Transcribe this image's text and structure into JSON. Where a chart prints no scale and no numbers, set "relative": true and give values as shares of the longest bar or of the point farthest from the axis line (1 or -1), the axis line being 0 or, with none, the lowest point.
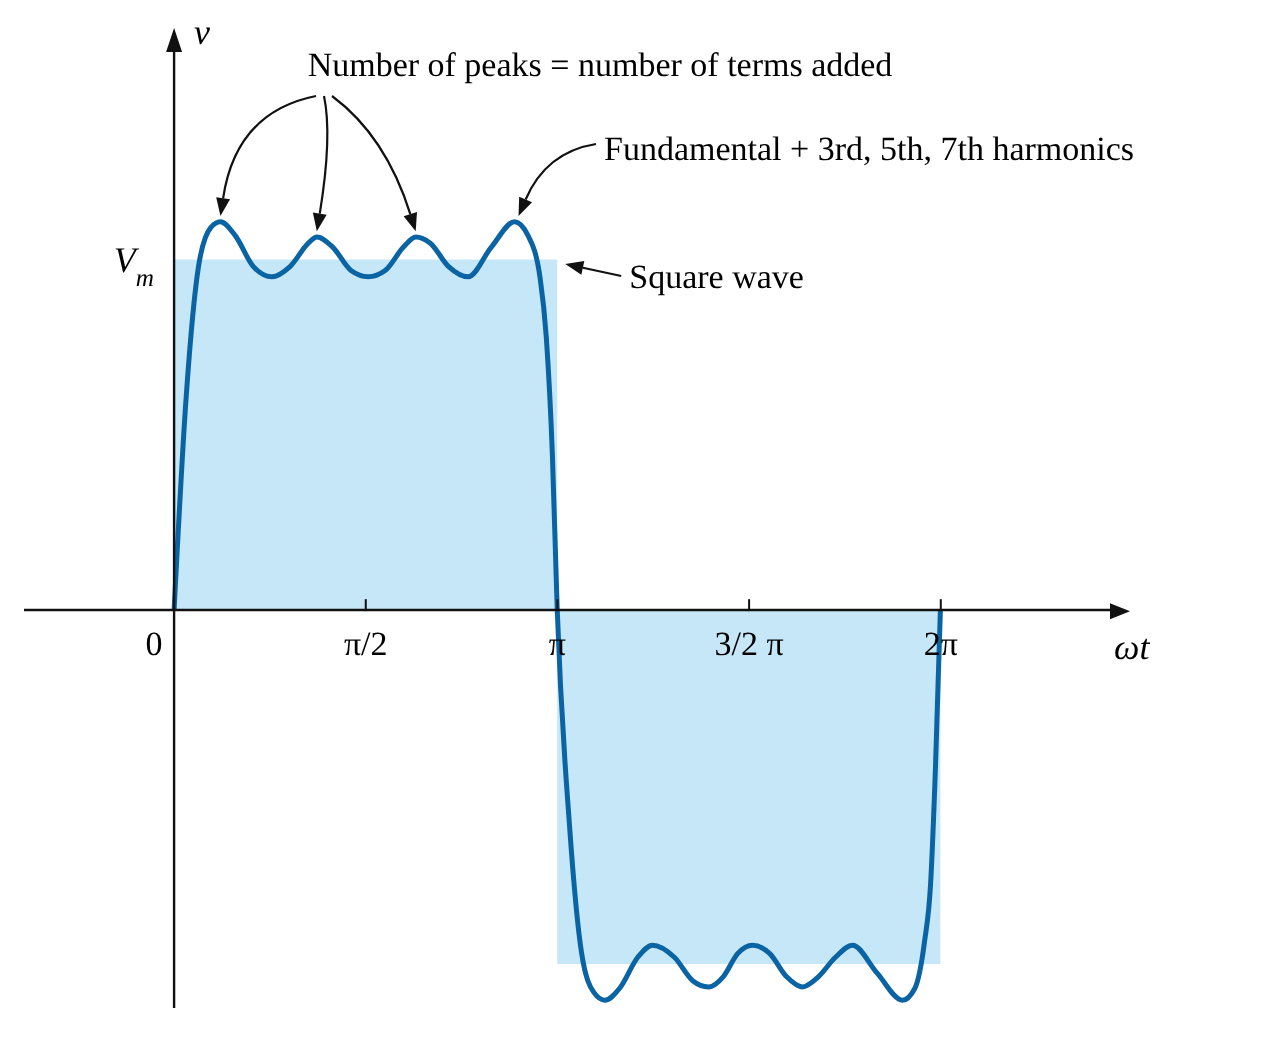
{
  "chart_data": {
    "type": "line",
    "relative": true,
    "xlabel": "ωt",
    "ylabel": "v",
    "xlim": [
      -1.23,
      7.67
    ],
    "xticks": [
      {
        "value": 0,
        "label": "0"
      },
      {
        "value": 1.5708,
        "label": "π/2"
      },
      {
        "value": 3.1416,
        "label": "π"
      },
      {
        "value": 4.7124,
        "label": "3/2 π"
      },
      {
        "value": 6.2832,
        "label": "2π"
      }
    ],
    "series": [
      {
        "name": "Square wave",
        "type": "area",
        "color": "#c6e7f8",
        "x": [
          0,
          3.14,
          3.14,
          6.28
        ],
        "values": [
          0.898,
          0.898,
          -0.907,
          -0.907
        ]
      },
      {
        "name": "Fundamental + 3rd, 5th, 7th harmonics",
        "color": "#0a64a4",
        "x": [
          0,
          0.1,
          0.2,
          0.3,
          0.38,
          0.5,
          0.65,
          0.8,
          0.95,
          1.1,
          1.17,
          1.3,
          1.45,
          1.59,
          1.73,
          1.88,
          1.98,
          2.1,
          2.25,
          2.41,
          2.6,
          2.79,
          2.9,
          3.0,
          3.05,
          3.1,
          3.14,
          3.24,
          3.34,
          3.44,
          3.53,
          3.65,
          3.8,
          3.92,
          4.1,
          4.25,
          4.38,
          4.5,
          4.62,
          4.74,
          4.88,
          5.02,
          5.15,
          5.28,
          5.42,
          5.56,
          5.76,
          5.97,
          6.07,
          6.15,
          6.2,
          6.24,
          6.28
        ],
        "values": [
          0,
          0.55,
          0.88,
          0.98,
          0.995,
          0.96,
          0.88,
          0.854,
          0.88,
          0.94,
          0.956,
          0.93,
          0.87,
          0.854,
          0.87,
          0.93,
          0.956,
          0.94,
          0.88,
          0.854,
          0.93,
          0.995,
          0.96,
          0.85,
          0.7,
          0.4,
          0,
          -0.55,
          -0.88,
          -0.98,
          -1,
          -0.97,
          -0.89,
          -0.859,
          -0.89,
          -0.95,
          -0.966,
          -0.94,
          -0.88,
          -0.859,
          -0.88,
          -0.94,
          -0.966,
          -0.94,
          -0.89,
          -0.859,
          -0.93,
          -1,
          -0.97,
          -0.85,
          -0.7,
          -0.4,
          0
        ]
      }
    ],
    "annotations": [
      "Number of peaks = number of terms added",
      {
        "text": "V$_{m}$",
        "x": 0,
        "y": 0.898
      }
    ]
  }
}
